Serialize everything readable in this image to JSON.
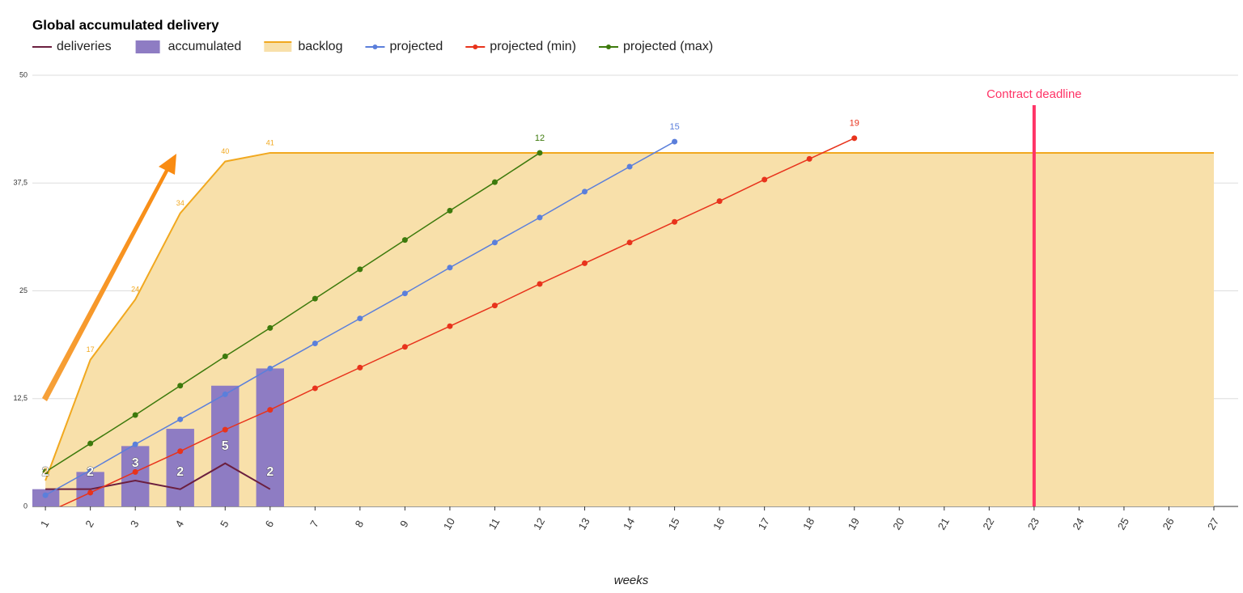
{
  "chart_data": {
    "type": "combo",
    "title": "Global accumulated delivery",
    "x_label": "weeks",
    "x": [
      1,
      2,
      3,
      4,
      5,
      6,
      7,
      8,
      9,
      10,
      11,
      12,
      13,
      14,
      15,
      16,
      17,
      18,
      19,
      20,
      21,
      22,
      23,
      24,
      25,
      26,
      27
    ],
    "xlim": [
      0.71,
      27.54
    ],
    "xticks": [
      1,
      2,
      3,
      4,
      5,
      6,
      7,
      8,
      9,
      10,
      11,
      12,
      13,
      14,
      15,
      16,
      17,
      18,
      19,
      20,
      21,
      22,
      23,
      24,
      25,
      26,
      27
    ],
    "ylim": [
      0,
      50
    ],
    "yticks": [
      0,
      {
        "value": 12.5,
        "label": "12,5"
      },
      25,
      {
        "value": 37.5,
        "label": "37,5"
      },
      50
    ],
    "grid": true,
    "legend": "top",
    "series": [
      {
        "name": "deliveries",
        "type": "line",
        "color": "#6b1f3f",
        "values": [
          2,
          2,
          3,
          2,
          5,
          2,
          null,
          null,
          null,
          null,
          null,
          null,
          null,
          null,
          null,
          null,
          null,
          null,
          null,
          null,
          null,
          null,
          null,
          null,
          null,
          null,
          null
        ],
        "value_labels": [
          2,
          2,
          3,
          2,
          5,
          2,
          null,
          null,
          null,
          null,
          null,
          null,
          null,
          null,
          null,
          null,
          null,
          null,
          null,
          null,
          null,
          null,
          null,
          null,
          null,
          null,
          null
        ]
      },
      {
        "name": "accumulated",
        "type": "bar",
        "color": "#8e7cc3",
        "values": [
          2,
          4,
          7,
          9,
          14,
          16,
          null,
          null,
          null,
          null,
          null,
          null,
          null,
          null,
          null,
          null,
          null,
          null,
          null,
          null,
          null,
          null,
          null,
          null,
          null,
          null,
          null
        ]
      },
      {
        "name": "backlog",
        "type": "area",
        "color": "#f1a81f",
        "fill": "#f8e0aa",
        "values": [
          3,
          17,
          24,
          34,
          40,
          41,
          41,
          41,
          41,
          41,
          41,
          41,
          41,
          41,
          41,
          41,
          41,
          41,
          41,
          41,
          41,
          41,
          41,
          41,
          41,
          41,
          41
        ],
        "value_labels": [
          3,
          17,
          24,
          34,
          40,
          41,
          null,
          null,
          null,
          null,
          null,
          null,
          null,
          null,
          null,
          null,
          null,
          null,
          null,
          null,
          null,
          null,
          null,
          null,
          null,
          null,
          null
        ]
      },
      {
        "name": "projected",
        "type": "line",
        "color": "#5b7fdb",
        "points": true,
        "values": [
          1.3,
          4.2,
          7.2,
          10.1,
          13.0,
          16.0,
          18.9,
          21.8,
          24.7,
          27.7,
          30.6,
          33.5,
          36.5,
          39.4,
          42.3,
          null,
          null,
          null,
          null,
          null,
          null,
          null,
          null,
          null,
          null,
          null,
          null
        ],
        "value_labels": [
          null,
          null,
          null,
          null,
          null,
          null,
          null,
          null,
          null,
          null,
          null,
          null,
          null,
          null,
          "15",
          null,
          null,
          null,
          null,
          null,
          null,
          null,
          null,
          null,
          null,
          null,
          null
        ]
      },
      {
        "name": "projected (min)",
        "type": "line",
        "color": "#e8331c",
        "points": true,
        "values": [
          -0.8,
          1.6,
          4.0,
          6.4,
          8.9,
          11.2,
          13.7,
          16.1,
          18.5,
          20.9,
          23.3,
          25.8,
          28.2,
          30.6,
          33.0,
          35.4,
          37.9,
          40.3,
          42.7,
          null,
          null,
          null,
          null,
          null,
          null,
          null,
          null
        ],
        "value_labels": [
          null,
          null,
          null,
          null,
          null,
          null,
          null,
          null,
          null,
          null,
          null,
          null,
          null,
          null,
          null,
          null,
          null,
          null,
          "19",
          null,
          null,
          null,
          null,
          null,
          null,
          null,
          null
        ]
      },
      {
        "name": "projected (max)",
        "type": "line",
        "color": "#3d7a0c",
        "points": true,
        "values": [
          4.0,
          7.3,
          10.6,
          14.0,
          17.4,
          20.7,
          24.1,
          27.5,
          30.9,
          34.3,
          37.6,
          41.0,
          null,
          null,
          null,
          null,
          null,
          null,
          null,
          null,
          null,
          null,
          null,
          null,
          null,
          null,
          null
        ],
        "value_labels": [
          null,
          null,
          null,
          null,
          null,
          null,
          null,
          null,
          null,
          null,
          null,
          "12",
          null,
          null,
          null,
          null,
          null,
          null,
          null,
          null,
          null,
          null,
          null,
          null,
          null,
          null,
          null
        ]
      }
    ],
    "annotations": [
      {
        "x": 23,
        "label": "Contract deadline",
        "color": "#ff3366"
      }
    ]
  }
}
